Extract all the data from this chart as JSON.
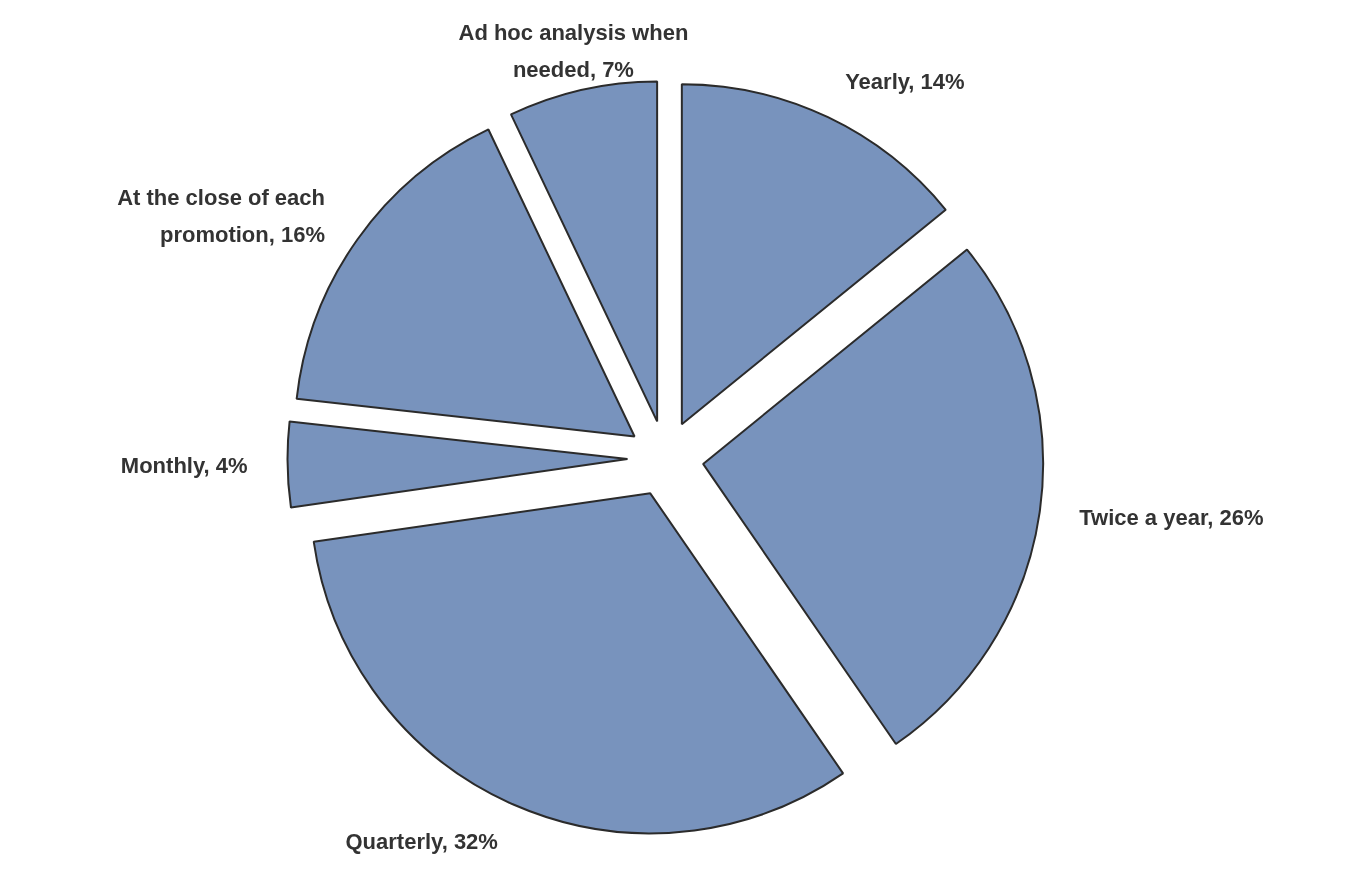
{
  "chart_data": {
    "type": "pie",
    "categories": [
      "Yearly",
      "Twice a year",
      "Quarterly",
      "Monthly",
      "At the close of each promotion",
      "Ad hoc analysis when needed"
    ],
    "values": [
      14,
      26,
      32,
      4,
      16,
      7
    ],
    "value_labels": [
      "14%",
      "26%",
      "32%",
      "4%",
      "16%",
      "7%"
    ],
    "colors": [
      "#7893bd",
      "#7893bd",
      "#7893bd",
      "#7893bd",
      "#7893bd",
      "#7893bd"
    ]
  }
}
